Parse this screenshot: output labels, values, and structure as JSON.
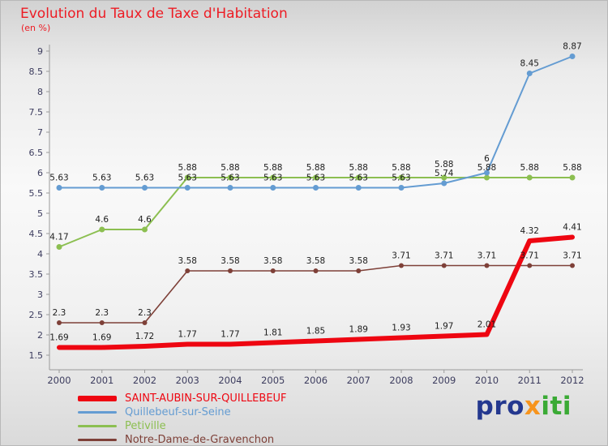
{
  "title": "Evolution du Taux de Taxe d'Habitation",
  "subtitle": "(en %)",
  "colors": {
    "title": "#ed1c24",
    "logo_pro": "#24388f",
    "logo_x": "#f7941d",
    "logo_iti": "#3aaa35"
  },
  "logo": {
    "pro": "pro",
    "x": "x",
    "iti": "iti"
  },
  "chart_data": {
    "type": "line",
    "x": [
      2000,
      2001,
      2002,
      2003,
      2004,
      2005,
      2006,
      2007,
      2008,
      2009,
      2010,
      2011,
      2012
    ],
    "ylim": [
      1.5,
      9
    ],
    "ytick_step": 0.5,
    "grid": false,
    "legend_position": "bottom-left",
    "series": [
      {
        "name": "SAINT-AUBIN-SUR-QUILLEBEUF",
        "color": "#ee0611",
        "width": 6,
        "marker_r": 0,
        "values": [
          1.69,
          1.69,
          1.72,
          1.77,
          1.77,
          1.81,
          1.85,
          1.89,
          1.93,
          1.97,
          2.01,
          4.32,
          4.41
        ]
      },
      {
        "name": "Quillebeuf-sur-Seine",
        "color": "#649cd2",
        "width": 2,
        "marker_r": 3.5,
        "values": [
          5.63,
          5.63,
          5.63,
          5.63,
          5.63,
          5.63,
          5.63,
          5.63,
          5.63,
          5.74,
          6,
          8.45,
          8.87
        ]
      },
      {
        "name": "Petiville",
        "color": "#8cbf51",
        "width": 2,
        "marker_r": 3.5,
        "values": [
          4.17,
          4.6,
          4.6,
          5.88,
          5.88,
          5.88,
          5.88,
          5.88,
          5.88,
          5.88,
          5.88,
          5.88,
          5.88
        ]
      },
      {
        "name": "Notre-Dame-de-Gravenchon",
        "color": "#7e4038",
        "width": 1.6,
        "marker_r": 3,
        "values": [
          2.3,
          2.3,
          2.3,
          3.58,
          3.58,
          3.58,
          3.58,
          3.58,
          3.71,
          3.71,
          3.71,
          3.71,
          3.71
        ]
      }
    ]
  }
}
